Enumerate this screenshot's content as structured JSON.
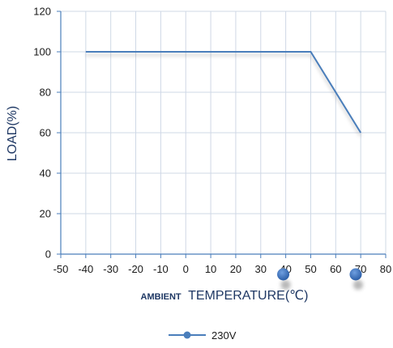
{
  "chart_data": {
    "type": "line",
    "xlabel_prefix": "AMBIENT",
    "xlabel_main": "TEMPERATURE(℃)",
    "ylabel": "LOAD(%)",
    "xlim": [
      -50,
      80
    ],
    "ylim": [
      0,
      120
    ],
    "xticks": [
      -50,
      -40,
      -30,
      -20,
      -10,
      0,
      10,
      20,
      30,
      40,
      50,
      60,
      70,
      80
    ],
    "yticks": [
      0,
      20,
      40,
      60,
      80,
      100,
      120
    ],
    "grid": true,
    "legend_position": "bottom",
    "series": [
      {
        "name": "230V",
        "color": "#4a7ebb",
        "x": [
          -40,
          50,
          70
        ],
        "y": [
          100,
          100,
          60
        ]
      }
    ],
    "extra_markers": [
      {
        "x": 39,
        "y": -10
      },
      {
        "x": 68,
        "y": -10
      }
    ]
  }
}
